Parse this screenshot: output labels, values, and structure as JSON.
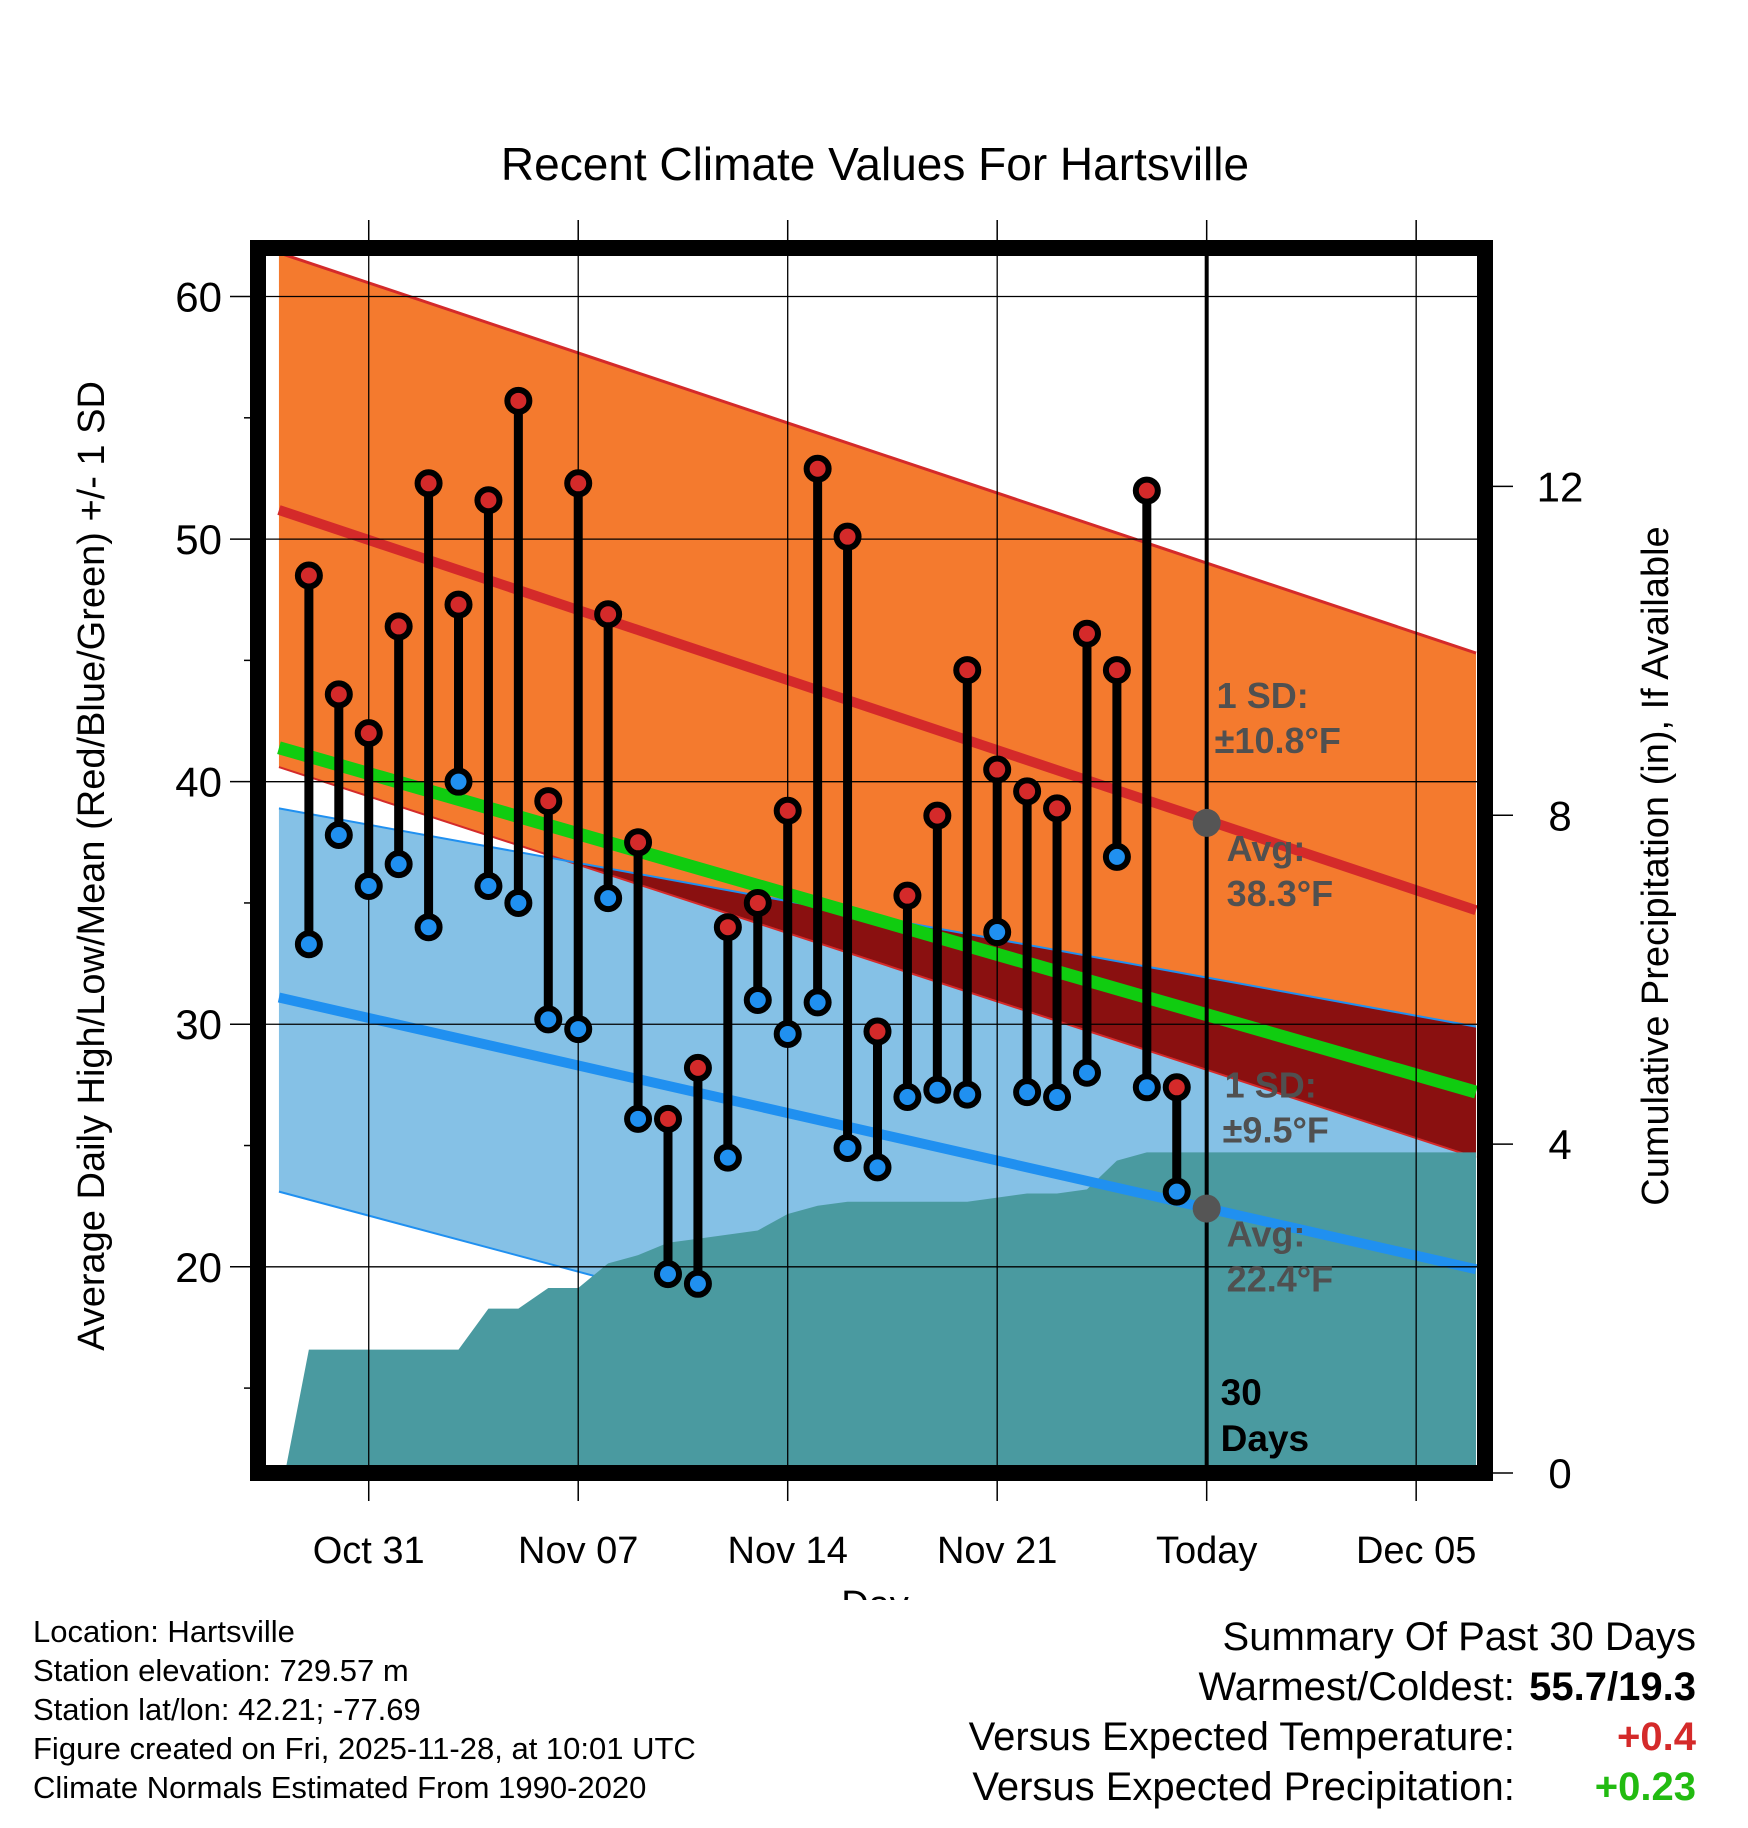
{
  "chart_data": {
    "type": "climate-range",
    "title": "Recent Climate Values For Hartsville",
    "xlabel": "Day",
    "ylabel": "Average Daily High/Low/Mean (Red/Blue/Green) +/- 1 SD",
    "ylabel_right": "Cumulative Precipitation (in), If Available",
    "ylim": [
      11.5,
      62
    ],
    "ylim_right": [
      0,
      14.9
    ],
    "yticks": [
      20,
      30,
      40,
      50,
      60
    ],
    "yticks_right": [
      0,
      4,
      8,
      12
    ],
    "xlim": [
      -3.7,
      37.3
    ],
    "xticks": [
      {
        "day": 0,
        "label": "Oct 31"
      },
      {
        "day": 7,
        "label": "Nov 07"
      },
      {
        "day": 14,
        "label": "Nov 14"
      },
      {
        "day": 21,
        "label": "Nov 21"
      },
      {
        "day": 28,
        "label": "Today"
      },
      {
        "day": 35,
        "label": "Dec 05"
      }
    ],
    "today_day": 28,
    "days_label": "30 Days",
    "normals": {
      "days": [
        -3,
        37
      ],
      "high_mean": [
        51.2,
        34.7
      ],
      "high_upper": [
        61.8,
        45.3
      ],
      "high_lower": [
        40.6,
        24.5
      ],
      "low_mean": [
        31.1,
        19.9
      ],
      "low_upper": [
        38.9,
        29.9
      ],
      "low_lower": [
        23.1,
        9.9
      ],
      "mean": [
        41.4,
        27.2
      ]
    },
    "high_annotation": {
      "sd": "1 SD:",
      "sd_value": "±10.8°F",
      "avg": "Avg:",
      "avg_value": "38.3°F",
      "value": 38.3
    },
    "low_annotation": {
      "sd": "1 SD:",
      "sd_value": "±9.5°F",
      "avg": "Avg:",
      "avg_value": "22.4°F",
      "value": 22.4
    },
    "observations": [
      {
        "day": -2,
        "high": 48.5,
        "low": 33.3
      },
      {
        "day": -1,
        "high": 43.6,
        "low": 37.8
      },
      {
        "day": 0,
        "high": 42.0,
        "low": 35.7
      },
      {
        "day": 1,
        "high": 46.4,
        "low": 36.6
      },
      {
        "day": 2,
        "high": 52.3,
        "low": 34.0
      },
      {
        "day": 3,
        "high": 47.3,
        "low": 40.0
      },
      {
        "day": 4,
        "high": 51.6,
        "low": 35.7
      },
      {
        "day": 5,
        "high": 55.7,
        "low": 35.0
      },
      {
        "day": 6,
        "high": 39.2,
        "low": 30.2
      },
      {
        "day": 7,
        "high": 52.3,
        "low": 29.8
      },
      {
        "day": 8,
        "high": 46.9,
        "low": 35.2
      },
      {
        "day": 9,
        "high": 37.5,
        "low": 26.1
      },
      {
        "day": 10,
        "high": 26.1,
        "low": 19.7
      },
      {
        "day": 11,
        "high": 28.2,
        "low": 19.3
      },
      {
        "day": 12,
        "high": 34.0,
        "low": 24.5
      },
      {
        "day": 13,
        "high": 35.0,
        "low": 31.0
      },
      {
        "day": 14,
        "high": 38.8,
        "low": 29.6
      },
      {
        "day": 15,
        "high": 52.9,
        "low": 30.9
      },
      {
        "day": 16,
        "high": 50.1,
        "low": 24.9
      },
      {
        "day": 17,
        "high": 29.7,
        "low": 24.1
      },
      {
        "day": 18,
        "high": 35.3,
        "low": 27.0
      },
      {
        "day": 19,
        "high": 38.6,
        "low": 27.3
      },
      {
        "day": 20,
        "high": 44.6,
        "low": 27.1
      },
      {
        "day": 21,
        "high": 40.5,
        "low": 33.8
      },
      {
        "day": 22,
        "high": 39.6,
        "low": 27.2
      },
      {
        "day": 23,
        "high": 38.9,
        "low": 27.0
      },
      {
        "day": 24,
        "high": 46.1,
        "low": 28.0
      },
      {
        "day": 25,
        "high": 44.6,
        "low": 36.9
      },
      {
        "day": 26,
        "high": 52.0,
        "low": 27.4
      },
      {
        "day": 27,
        "high": 27.4,
        "low": 23.1
      }
    ],
    "precipitation": [
      {
        "day": -2.8,
        "value": 0
      },
      {
        "day": -2,
        "value": 1.5
      },
      {
        "day": 2,
        "value": 1.5
      },
      {
        "day": 3,
        "value": 1.5
      },
      {
        "day": 4,
        "value": 2.0
      },
      {
        "day": 5,
        "value": 2.0
      },
      {
        "day": 6,
        "value": 2.25
      },
      {
        "day": 7,
        "value": 2.25
      },
      {
        "day": 8,
        "value": 2.55
      },
      {
        "day": 9,
        "value": 2.65
      },
      {
        "day": 10,
        "value": 2.8
      },
      {
        "day": 11,
        "value": 2.85
      },
      {
        "day": 12,
        "value": 2.9
      },
      {
        "day": 13,
        "value": 2.95
      },
      {
        "day": 14,
        "value": 3.15
      },
      {
        "day": 15,
        "value": 3.25
      },
      {
        "day": 16,
        "value": 3.3
      },
      {
        "day": 20,
        "value": 3.3
      },
      {
        "day": 21,
        "value": 3.35
      },
      {
        "day": 22,
        "value": 3.4
      },
      {
        "day": 23,
        "value": 3.4
      },
      {
        "day": 24,
        "value": 3.45
      },
      {
        "day": 25,
        "value": 3.8
      },
      {
        "day": 26,
        "value": 3.9
      },
      {
        "day": 27,
        "value": 3.9
      },
      {
        "day": 37,
        "value": 3.9
      }
    ],
    "colors": {
      "high_band": "#f47a2e",
      "high_line": "#d42a2a",
      "low_band": "#85c1e6",
      "low_line": "#2090f0",
      "overlap": "#8a1010",
      "mean_line": "#10cc10",
      "precip": "#4a9aa0",
      "high_dot": "#d42a2a",
      "low_dot": "#2090f0",
      "annotation": "#505050"
    }
  },
  "info": {
    "location": "Location: Hartsville",
    "elevation": "Station elevation: 729.57 m",
    "latlon": "Station lat/lon: 42.21; -77.69",
    "created": "Figure created on Fri, 2025-11-28, at 10:01 UTC",
    "normals": "Climate Normals Estimated From 1990-2020"
  },
  "summary": {
    "title": "Summary Of Past 30 Days",
    "warm_cold_label": "Warmest/Coldest:",
    "warm_cold_value": "55.7/19.3",
    "temp_label": "Versus Expected Temperature:",
    "temp_value": "+0.4",
    "temp_color": "#d42a2a",
    "precip_label": "Versus Expected Precipitation:",
    "precip_value": "+0.23",
    "precip_color": "#22bb11"
  }
}
